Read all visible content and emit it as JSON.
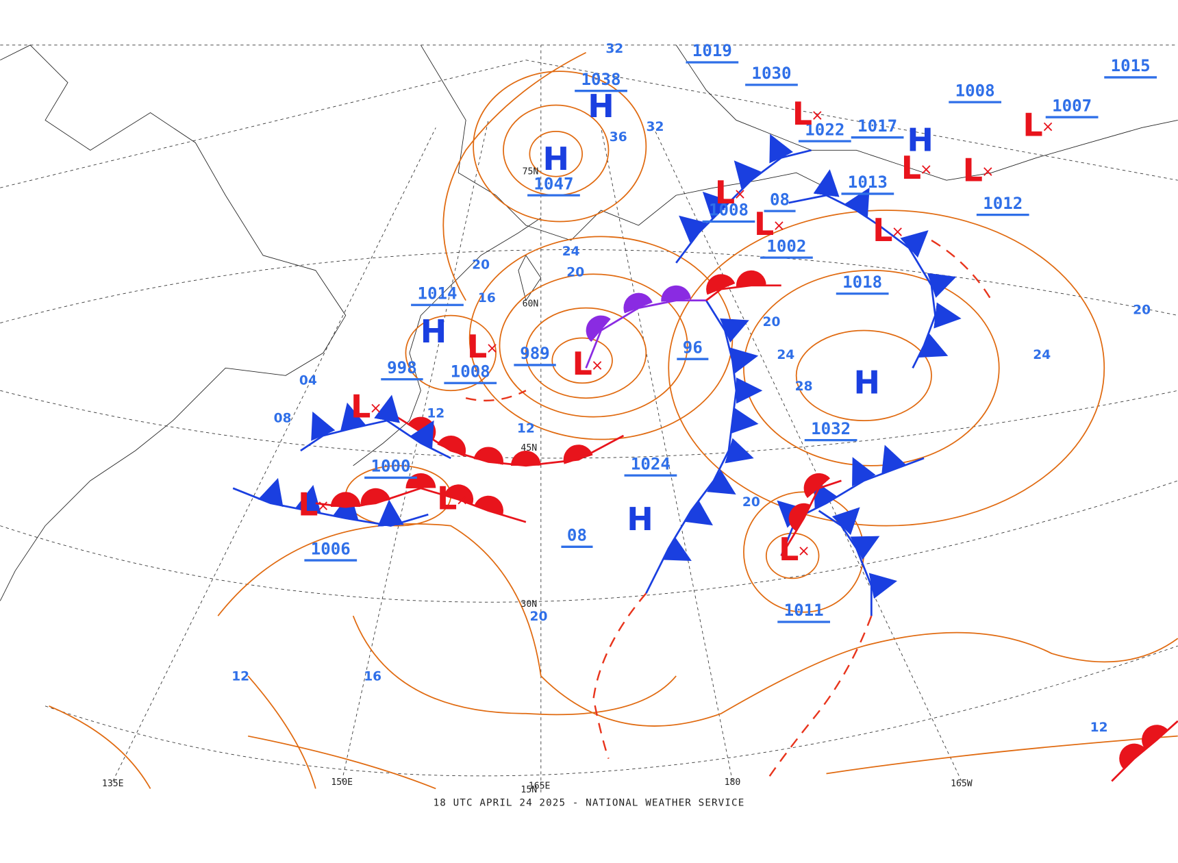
{
  "footer": "18 UTC APRIL 24 2025 - NATIONAL WEATHER SERVICE",
  "centers": [
    {
      "letter": "H",
      "pressure": "1038"
    },
    {
      "letter": "H",
      "pressure": "1047"
    },
    {
      "letter": "H",
      "pressure": "1014"
    },
    {
      "letter": "L",
      "pressure": "989"
    },
    {
      "letter": "L",
      "pressure": "998"
    },
    {
      "letter": "L",
      "pressure": "1008"
    },
    {
      "letter": "L",
      "pressure": "1000"
    },
    {
      "letter": "L",
      "pressure": "1006"
    },
    {
      "letter": "H",
      "pressure": "1024"
    },
    {
      "pressure": "96"
    },
    {
      "letter": "H",
      "pressure": "1032"
    },
    {
      "letter": "L",
      "pressure": "1011"
    },
    {
      "letter": "L",
      "pressure": "1018"
    },
    {
      "letter": "L",
      "pressure": "1002"
    },
    {
      "letter": "L",
      "pressure": "1008"
    },
    {
      "letter": "L",
      "pressure": "1013"
    },
    {
      "letter": "L",
      "pressure": "1012"
    },
    {
      "letter": "H",
      "pressure": "1017"
    },
    {
      "letter": "L",
      "pressure": "1022"
    },
    {
      "pressure": "1030"
    },
    {
      "pressure": "1019"
    },
    {
      "pressure": "1008"
    },
    {
      "letter": "L",
      "pressure": "1007"
    },
    {
      "pressure": "1015"
    },
    {
      "pressure": "08"
    },
    {
      "pressure": "08"
    }
  ],
  "isobar_labels": [
    "32",
    "32",
    "36",
    "24",
    "20",
    "20",
    "16",
    "12",
    "12",
    "04",
    "08",
    "20",
    "24",
    "28",
    "20",
    "24",
    "20",
    "20",
    "12",
    "16",
    "12"
  ],
  "lon_labels": [
    "135E",
    "150E",
    "165E",
    "180",
    "165W"
  ],
  "lat_labels": [
    "75N",
    "60N",
    "45N",
    "30N",
    "15N"
  ]
}
